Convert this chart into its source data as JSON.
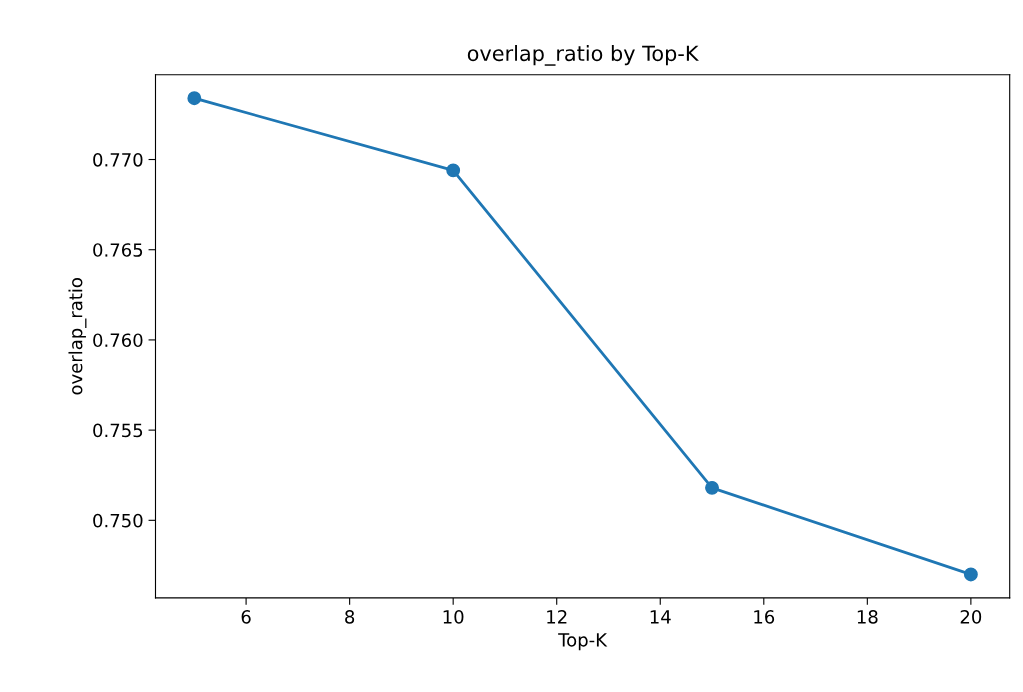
{
  "chart_data": {
    "type": "line",
    "title": "overlap_ratio by Top-K",
    "xlabel": "Top-K",
    "ylabel": "overlap_ratio",
    "x": [
      5,
      10,
      15,
      20
    ],
    "series": [
      {
        "color": "#1f77b4",
        "values": [
          0.7734,
          0.7694,
          0.7518,
          0.747
        ]
      }
    ],
    "xlim": [
      4.25,
      20.75
    ],
    "xticks": [
      6,
      8,
      10,
      12,
      14,
      16,
      18,
      20
    ],
    "ylim": [
      0.7457,
      0.7747
    ],
    "yticks": [
      {
        "value": 0.75,
        "label": "0.750"
      },
      {
        "value": 0.755,
        "label": "0.755"
      },
      {
        "value": 0.76,
        "label": "0.760"
      },
      {
        "value": 0.765,
        "label": "0.765"
      },
      {
        "value": 0.77,
        "label": "0.770"
      }
    ],
    "marker": "circle",
    "line_style": "solid",
    "grid": false
  }
}
